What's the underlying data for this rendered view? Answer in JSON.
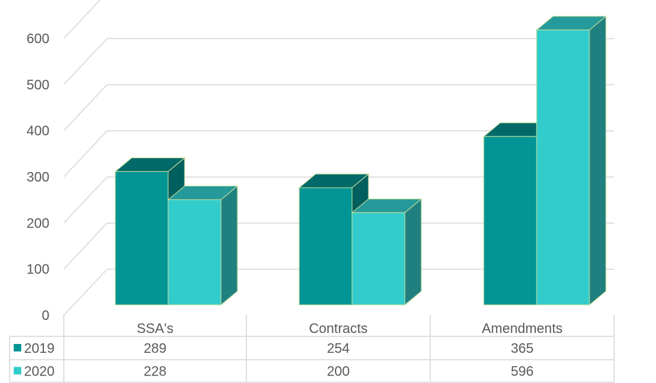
{
  "chart_data": {
    "type": "bar",
    "style": "3d-clustered-column-with-data-table",
    "categories": [
      "SSA's",
      "Contracts",
      "Amendments"
    ],
    "series": [
      {
        "name": "2019",
        "values": [
          289,
          254,
          365
        ],
        "color": "#029595",
        "top_color": "#016A68",
        "side_color": "#015F5E"
      },
      {
        "name": "2020",
        "values": [
          228,
          200,
          596
        ],
        "color": "#33CCCC",
        "top_color": "#269A9A",
        "side_color": "#208080"
      }
    ],
    "y_ticks": [
      0,
      100,
      200,
      300,
      400,
      500,
      600
    ],
    "ylim": [
      0,
      600
    ],
    "grid": true,
    "legend": "data-table-left",
    "colors": {
      "grid": "#D9D9D9",
      "bar_edge": "#C5E09B",
      "text": "#595959"
    }
  }
}
